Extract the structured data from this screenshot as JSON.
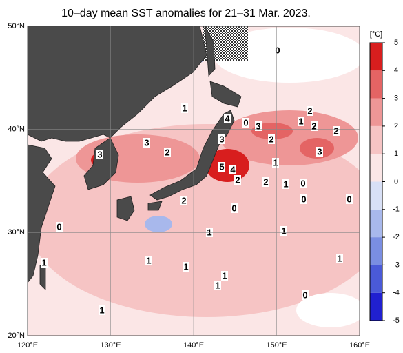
{
  "map": {
    "title": "10–day mean SST anomalies for 21–31 Mar. 2023.",
    "lon_ticks": [
      {
        "value": 120,
        "label": "120°E"
      },
      {
        "value": 130,
        "label": "130°E"
      },
      {
        "value": 140,
        "label": "140°E"
      },
      {
        "value": 150,
        "label": "150°E"
      },
      {
        "value": 160,
        "label": "160°E"
      }
    ],
    "lat_ticks": [
      {
        "value": 20,
        "label": "20°N"
      },
      {
        "value": 30,
        "label": "30°N"
      },
      {
        "value": 40,
        "label": "40°N"
      },
      {
        "value": 50,
        "label": "50°N"
      }
    ],
    "lon_range": [
      120,
      160
    ],
    "lat_range": [
      20,
      50
    ],
    "colorbar": {
      "unit": "[°C]",
      "range": [
        -5,
        5
      ],
      "ticks": [
        5,
        4,
        3,
        2,
        1,
        0,
        -1,
        -2,
        -3,
        -4,
        -5
      ],
      "colors": [
        "#2020d0",
        "#4a5ad8",
        "#7a8ee2",
        "#a8b8ec",
        "#d8e0f6",
        "#fbe6e6",
        "#f6c4c4",
        "#ee9696",
        "#e46464",
        "#d81e1e"
      ]
    },
    "contour_labels": [
      "0",
      "1",
      "4",
      "0",
      "3",
      "2",
      "1",
      "2",
      "2",
      "3",
      "2",
      "3",
      "2",
      "3",
      "3",
      "1",
      "5",
      "4",
      "2",
      "2",
      "1",
      "0",
      "0",
      "0",
      "2",
      "0",
      "0",
      "1",
      "1",
      "1",
      "1",
      "1",
      "1",
      "1",
      "1",
      "0",
      "1"
    ]
  }
}
